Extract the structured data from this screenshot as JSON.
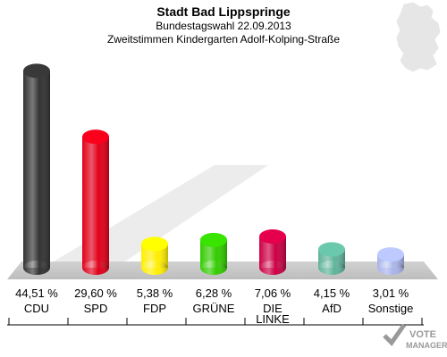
{
  "chart_data": {
    "type": "bar",
    "title": "Stadt Bad Lippspringe",
    "subtitle": "Bundestagswahl 22.09.2013",
    "subtitle2": "Zweitstimmen Kindergarten Adolf-Kolping-Straße",
    "categories": [
      "CDU",
      "SPD",
      "FDP",
      "GRÜNE",
      "DIE LINKE",
      "AfD",
      "Sonstige"
    ],
    "values": [
      44.51,
      29.6,
      5.38,
      6.28,
      7.06,
      4.15,
      3.01
    ],
    "value_labels": [
      "44,51 %",
      "29,60 %",
      "5,38 %",
      "6,28 %",
      "7,06 %",
      "4,15 %",
      "3,01 %"
    ],
    "colors": [
      "#333333",
      "#e0001a",
      "#ffee00",
      "#33cc00",
      "#cc0044",
      "#5fb39a",
      "#a9b4ea"
    ],
    "ylim": [
      0,
      46
    ]
  },
  "watermark": {
    "line1": "VOTE",
    "line2": "MANAGER"
  }
}
